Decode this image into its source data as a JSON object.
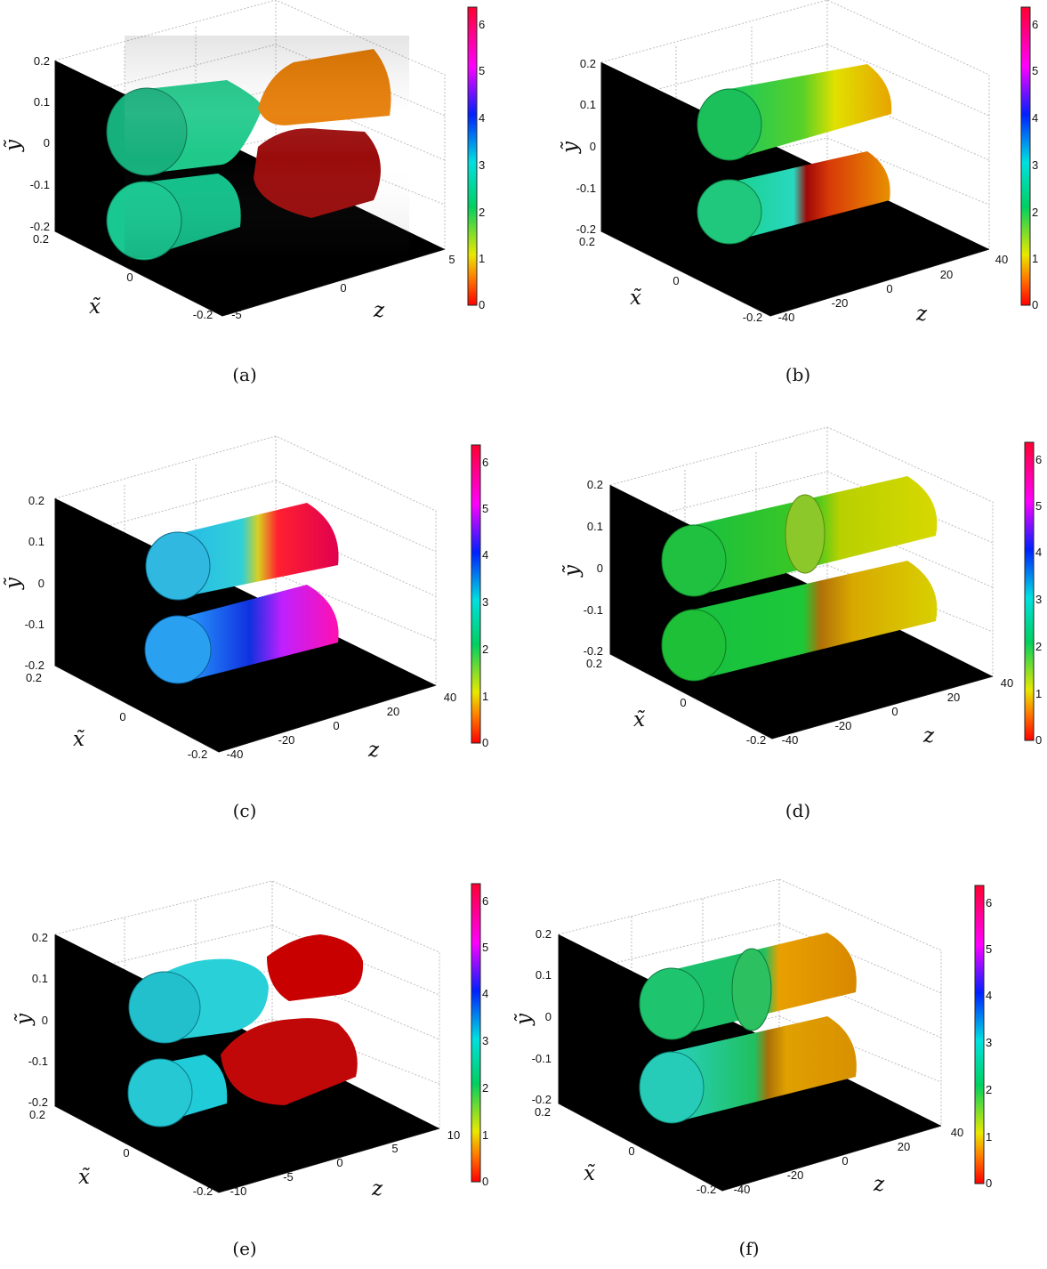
{
  "figure": {
    "panels": [
      {
        "caption": "(a)",
        "zticks": [
          "-5",
          "0",
          "5"
        ],
        "yticks": [
          "0.2",
          "0.1",
          "0",
          "-0.1",
          "-0.2"
        ],
        "xticks": [
          "0.2",
          "0",
          "-0.2"
        ],
        "cticks": [
          "0",
          "1",
          "2",
          "3",
          "4",
          "5",
          "6"
        ],
        "labels": {
          "x": "x̃",
          "y": "ỹ",
          "z": "z"
        }
      },
      {
        "caption": "(b)",
        "zticks": [
          "-40",
          "-20",
          "0",
          "20",
          "40"
        ],
        "yticks": [
          "0.2",
          "0.1",
          "0",
          "-0.1",
          "-0.2"
        ],
        "xticks": [
          "0.2",
          "0",
          "-0.2"
        ],
        "cticks": [
          "0",
          "1",
          "2",
          "3",
          "4",
          "5",
          "6"
        ],
        "labels": {
          "x": "x̃",
          "y": "ỹ",
          "z": "z"
        }
      },
      {
        "caption": "(c)",
        "zticks": [
          "-40",
          "-20",
          "0",
          "20",
          "40"
        ],
        "yticks": [
          "0.2",
          "0.1",
          "0",
          "-0.1",
          "-0.2"
        ],
        "xticks": [
          "0.2",
          "0",
          "-0.2"
        ],
        "cticks": [
          "0",
          "1",
          "2",
          "3",
          "4",
          "5",
          "6"
        ],
        "labels": {
          "x": "x̃",
          "y": "ỹ",
          "z": "z"
        }
      },
      {
        "caption": "(d)",
        "zticks": [
          "-40",
          "-20",
          "0",
          "20",
          "40"
        ],
        "yticks": [
          "0.2",
          "0.1",
          "0",
          "-0.1",
          "-0.2"
        ],
        "xticks": [
          "0.2",
          "0",
          "-0.2"
        ],
        "cticks": [
          "0",
          "1",
          "2",
          "3",
          "4",
          "5",
          "6"
        ],
        "labels": {
          "x": "x̃",
          "y": "ỹ",
          "z": "z"
        }
      },
      {
        "caption": "(e)",
        "zticks": [
          "-10",
          "-5",
          "0",
          "5",
          "10"
        ],
        "yticks": [
          "0.2",
          "0.1",
          "0",
          "-0.1",
          "-0.2"
        ],
        "xticks": [
          "0.2",
          "0",
          "-0.2"
        ],
        "cticks": [
          "0",
          "1",
          "2",
          "3",
          "4",
          "5",
          "6"
        ],
        "labels": {
          "x": "x̃",
          "y": "ỹ",
          "z": "z"
        }
      },
      {
        "caption": "(f)",
        "zticks": [
          "-40",
          "-20",
          "0",
          "20",
          "40"
        ],
        "yticks": [
          "0.2",
          "0.1",
          "0",
          "-0.1",
          "-0.2"
        ],
        "xticks": [
          "0.2",
          "0",
          "-0.2"
        ],
        "cticks": [
          "0",
          "1",
          "2",
          "3",
          "4",
          "5",
          "6"
        ],
        "labels": {
          "x": "x̃",
          "y": "ỹ",
          "z": "z"
        }
      }
    ],
    "colorbar": {
      "range": [
        0,
        6.28
      ],
      "colormap": [
        "#ff0000",
        "#ff8000",
        "#e6e600",
        "#00cc66",
        "#00e6e6",
        "#0000ff",
        "#ff00ff",
        "#ff0033"
      ]
    }
  }
}
